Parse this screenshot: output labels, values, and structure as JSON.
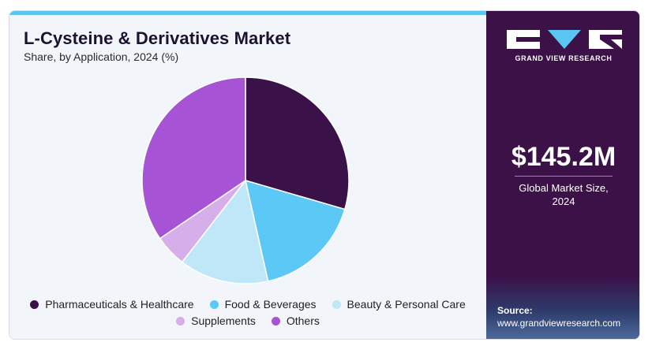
{
  "chart_data": {
    "type": "pie",
    "title": "L-Cysteine & Derivatives Market",
    "subtitle": "Share, by Application, 2024 (%)",
    "slices": [
      {
        "label": "Pharmaceuticals & Healthcare",
        "value": 29.5,
        "color": "#3a1148"
      },
      {
        "label": "Food & Beverages",
        "value": 17.0,
        "color": "#5bc8f5"
      },
      {
        "label": "Beauty & Personal Care",
        "value": 14.0,
        "color": "#bfe7f8"
      },
      {
        "label": "Supplements",
        "value": 5.0,
        "color": "#d6aee9"
      },
      {
        "label": "Others",
        "value": 34.5,
        "color": "#a653d6"
      }
    ],
    "start_angle_deg": 0,
    "direction": "clockwise",
    "legend_position": "bottom"
  },
  "legend": {
    "row1": [
      {
        "label": "Pharmaceuticals & Healthcare",
        "color": "#3a1148"
      },
      {
        "label": "Food & Beverages",
        "color": "#5bc8f5"
      },
      {
        "label": "Beauty & Personal Care",
        "color": "#bfe7f8"
      }
    ],
    "row2": [
      {
        "label": "Supplements",
        "color": "#d6aee9"
      },
      {
        "label": "Others",
        "color": "#a653d6"
      }
    ]
  },
  "sidebar": {
    "brand": "GRAND VIEW RESEARCH",
    "market_value": "$145.2M",
    "market_label_line1": "Global Market Size,",
    "market_label_line2": "2024",
    "source_label": "Source:",
    "source_url": "www.grandviewresearch.com"
  },
  "colors": {
    "sidebar_bg": "#3b1148",
    "accent_bar": "#5bc5f2",
    "panel_bg": "#f2f6fa"
  }
}
